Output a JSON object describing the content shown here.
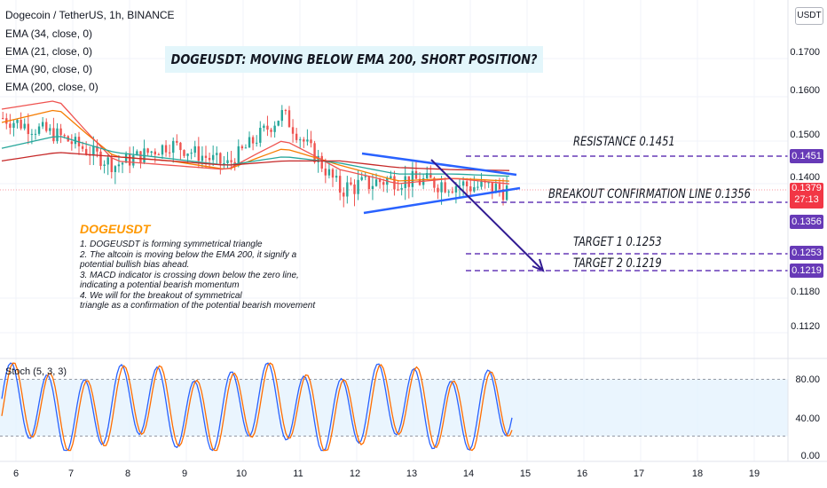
{
  "header": {
    "symbol": "Dogecoin / TetherUS, 1h, BINANCE",
    "indicators": [
      "EMA (34, close, 0)",
      "EMA (21, close, 0)",
      "EMA (90, close, 0)",
      "EMA (200, close, 0)"
    ]
  },
  "currency_label": "USDT",
  "title": "DOGEUSDT: MOVING BELOW EMA 200, SHORT POSITION?",
  "notes": {
    "heading": "DOGEUSDT",
    "lines": [
      "1. DOGEUSDT is forming symmetrical triangle",
      "2. The altcoin is moving below the EMA 200, it signify a",
      "potential bullish bias ahead.",
      "3. MACD indicator is crossing down below the zero line,",
      "indicating a potential bearish momentum",
      "4. We will for the breakout of symmetrical",
      "triangle as a confirmation of the potential bearish movement"
    ]
  },
  "levels": {
    "resistance": {
      "label": "RESISTANCE  0.1451",
      "value": 0.1451,
      "tag": "0.1451",
      "color": "#673ab7"
    },
    "breakout": {
      "label": "BREAKOUT CONFIRMATION LINE  0.1356",
      "value": 0.1356,
      "tag": "0.1356",
      "color": "#673ab7"
    },
    "target1": {
      "label": "TARGET 1  0.1253",
      "value": 0.1253,
      "tag": "0.1253",
      "color": "#673ab7"
    },
    "target2": {
      "label": "TARGET 2  0.1219",
      "value": 0.1219,
      "tag": "0.1219",
      "color": "#673ab7"
    }
  },
  "current_price": {
    "value": 0.1379,
    "tag": "0.1379",
    "countdown": "27:13",
    "color": "#f23645"
  },
  "price_axis": {
    "ticks": [
      "0.1700",
      "0.1600",
      "0.1500",
      "0.1400",
      "0.1180",
      "0.1120"
    ],
    "tick_values": [
      0.17,
      0.16,
      0.15,
      0.14,
      0.118,
      0.112
    ]
  },
  "time_axis": {
    "labels": [
      "6",
      "7",
      "8",
      "9",
      "10",
      "11",
      "12",
      "13",
      "14",
      "15",
      "16",
      "17",
      "18",
      "19"
    ]
  },
  "stoch": {
    "label": "Stoch (5, 3, 3)",
    "ticks": [
      "80.00",
      "40.00",
      "0.00"
    ],
    "upper": 80,
    "lower": 20
  },
  "chart_data": {
    "type": "line",
    "title": "DOGEUSDT: MOVING BELOW EMA 200, SHORT POSITION?",
    "x": [
      "6",
      "7",
      "8",
      "9",
      "10",
      "11",
      "12",
      "13",
      "14",
      "15"
    ],
    "series": [
      {
        "name": "EMA (34, close, 0)",
        "color": "#f57c00",
        "values": [
          0.153,
          0.156,
          0.145,
          0.144,
          0.142,
          0.147,
          0.143,
          0.1395,
          0.14,
          0.1395
        ]
      },
      {
        "name": "EMA (21, close, 0)",
        "color": "#ef5350",
        "values": [
          0.156,
          0.158,
          0.144,
          0.143,
          0.142,
          0.149,
          0.142,
          0.139,
          0.14,
          0.139
        ]
      },
      {
        "name": "EMA (90, close, 0)",
        "color": "#26a69a",
        "values": [
          0.147,
          0.15,
          0.146,
          0.1445,
          0.143,
          0.145,
          0.1435,
          0.141,
          0.141,
          0.1405
        ]
      },
      {
        "name": "EMA (200, close, 0)",
        "color": "#c62828",
        "values": [
          0.144,
          0.146,
          0.145,
          0.144,
          0.143,
          0.144,
          0.144,
          0.1425,
          0.142,
          0.1418
        ]
      }
    ],
    "price_close": [
      0.154,
      0.15,
      0.143,
      0.148,
      0.143,
      0.155,
      0.138,
      0.14,
      0.139,
      0.1379
    ],
    "ylim": [
      0.108,
      0.178
    ],
    "xlabel": "",
    "ylabel": ""
  }
}
